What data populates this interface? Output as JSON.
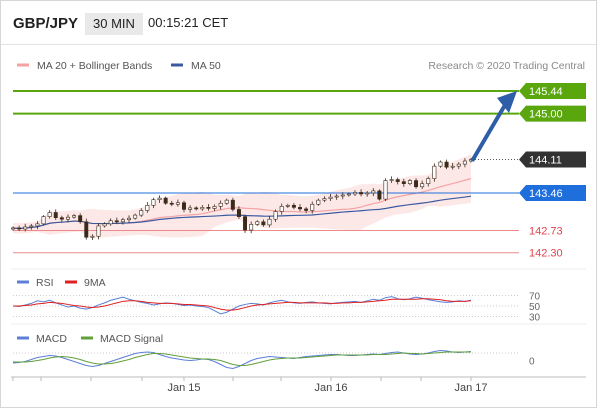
{
  "header": {
    "pair": "GBP/JPY",
    "timeframe": "30 MIN",
    "time": "00:15:21 CET"
  },
  "legend": {
    "ma20": "MA 20 + Bollinger Bands",
    "ma50": "MA 50",
    "credit": "Research © 2020 Trading Central",
    "ma20_color": "#f4a3a3",
    "ma50_color": "#3a5aa0"
  },
  "levels": [
    {
      "value": "145.44",
      "color": "#5aa70d",
      "style": "resistance"
    },
    {
      "value": "145.00",
      "color": "#5aa70d",
      "style": "resistance"
    },
    {
      "value": "144.11",
      "color": "#333333",
      "style": "last"
    },
    {
      "value": "143.46",
      "color": "#1e6fdc",
      "style": "pivot"
    },
    {
      "value": "142.73",
      "color": "#ec8a8a",
      "style": "support"
    },
    {
      "value": "142.30",
      "color": "#ec8a8a",
      "style": "support"
    }
  ],
  "rsi": {
    "label": "RSI",
    "label2": "9MA",
    "ticks": [
      "70",
      "50",
      "30"
    ],
    "color": "#5b7fd6",
    "color2": "#e02020"
  },
  "macd": {
    "label": "MACD",
    "label2": "MACD Signal",
    "ticks": [
      "0"
    ],
    "color": "#5b7fd6",
    "color2": "#62a03a"
  },
  "xaxis": {
    "labels": [
      "Jan 15",
      "Jan 16",
      "Jan 17"
    ]
  },
  "chart_data": {
    "type": "candlestick",
    "symbol": "GBP/JPY",
    "interval": "30 MIN",
    "ylim": [
      142.1,
      145.75
    ],
    "x_labels": [
      "Jan 15",
      "Jan 16",
      "Jan 17"
    ],
    "close_series": [
      142.78,
      142.76,
      142.8,
      142.82,
      142.86,
      143.0,
      143.08,
      142.98,
      142.95,
      142.99,
      143.02,
      142.9,
      142.6,
      142.62,
      142.82,
      142.86,
      142.92,
      142.9,
      142.94,
      142.97,
      143.03,
      143.12,
      143.22,
      143.33,
      143.36,
      143.26,
      143.24,
      143.27,
      143.14,
      143.17,
      143.15,
      143.18,
      143.16,
      143.2,
      143.26,
      143.32,
      143.14,
      143.0,
      142.74,
      142.85,
      142.9,
      142.84,
      142.95,
      143.1,
      143.2,
      143.22,
      143.18,
      143.15,
      143.12,
      143.24,
      143.32,
      143.35,
      143.38,
      143.4,
      143.42,
      143.44,
      143.47,
      143.44,
      143.46,
      143.5,
      143.34,
      143.7,
      143.72,
      143.68,
      143.64,
      143.7,
      143.58,
      143.64,
      143.74,
      143.98,
      144.06,
      143.96,
      143.98,
      144.02,
      144.08,
      144.11
    ],
    "key_levels": [
      145.44,
      145.0,
      144.11,
      143.46,
      142.73,
      142.3
    ],
    "rsi_ticks": [
      70,
      50,
      30
    ],
    "rsi_series": [
      50,
      49,
      52,
      55,
      60,
      58,
      61,
      56,
      52,
      48,
      50,
      46,
      44,
      47,
      52,
      56,
      61,
      64,
      67,
      63,
      60,
      57,
      55,
      52,
      54,
      56,
      55,
      53,
      51,
      52,
      50,
      49,
      47,
      41,
      35,
      38,
      44,
      50,
      53,
      55,
      54,
      52,
      56,
      59,
      61,
      58,
      56,
      55,
      57,
      58,
      56,
      55,
      54,
      56,
      57,
      58,
      59,
      57,
      60,
      63,
      61,
      66,
      68,
      64,
      62,
      64,
      67,
      65,
      62,
      60,
      58,
      57,
      58,
      60,
      59,
      61
    ],
    "rsi_ma_series": [
      50,
      50,
      51,
      52,
      54,
      55,
      57,
      56,
      55,
      53,
      51,
      50,
      48,
      47,
      48,
      50,
      53,
      56,
      59,
      60,
      60,
      59,
      57,
      56,
      55,
      55,
      55,
      54,
      53,
      53,
      52,
      51,
      50,
      47,
      44,
      42,
      42,
      44,
      47,
      50,
      52,
      53,
      54,
      55,
      56,
      57,
      57,
      56,
      56,
      56,
      56,
      56,
      55,
      55,
      56,
      56,
      57,
      57,
      58,
      59,
      60,
      61,
      63,
      63,
      63,
      63,
      63,
      64,
      64,
      63,
      62,
      60,
      59,
      59,
      59,
      60
    ],
    "macd_ticks": [
      0
    ],
    "macd_series": [
      -0.05,
      -0.04,
      -0.02,
      0.02,
      0.06,
      0.08,
      0.1,
      0.09,
      0.06,
      0.02,
      -0.02,
      -0.06,
      -0.1,
      -0.12,
      -0.1,
      -0.06,
      -0.02,
      0.02,
      0.06,
      0.1,
      0.14,
      0.16,
      0.17,
      0.16,
      0.12,
      0.08,
      0.05,
      0.03,
      0.01,
      0.0,
      0.01,
      0.03,
      0.02,
      -0.02,
      -0.08,
      -0.14,
      -0.16,
      -0.12,
      -0.06,
      0.0,
      0.04,
      0.06,
      0.08,
      0.07,
      0.06,
      0.05,
      0.04,
      0.06,
      0.08,
      0.09,
      0.1,
      0.11,
      0.12,
      0.12,
      0.11,
      0.1,
      0.1,
      0.11,
      0.12,
      0.13,
      0.12,
      0.14,
      0.16,
      0.17,
      0.15,
      0.13,
      0.12,
      0.13,
      0.15,
      0.18,
      0.2,
      0.19,
      0.17,
      0.16,
      0.17,
      0.18
    ],
    "macd_signal_series": [
      -0.03,
      -0.03,
      -0.03,
      -0.02,
      0.0,
      0.02,
      0.05,
      0.07,
      0.08,
      0.07,
      0.05,
      0.02,
      -0.02,
      -0.05,
      -0.07,
      -0.07,
      -0.06,
      -0.04,
      -0.01,
      0.02,
      0.06,
      0.09,
      0.12,
      0.14,
      0.14,
      0.13,
      0.11,
      0.09,
      0.07,
      0.05,
      0.04,
      0.03,
      0.03,
      0.02,
      0.0,
      -0.04,
      -0.08,
      -0.1,
      -0.1,
      -0.08,
      -0.05,
      -0.02,
      0.01,
      0.03,
      0.04,
      0.05,
      0.05,
      0.05,
      0.06,
      0.07,
      0.08,
      0.09,
      0.1,
      0.11,
      0.11,
      0.11,
      0.11,
      0.11,
      0.11,
      0.12,
      0.12,
      0.12,
      0.13,
      0.14,
      0.15,
      0.14,
      0.14,
      0.13,
      0.14,
      0.15,
      0.16,
      0.17,
      0.17,
      0.17,
      0.17,
      0.17
    ]
  }
}
